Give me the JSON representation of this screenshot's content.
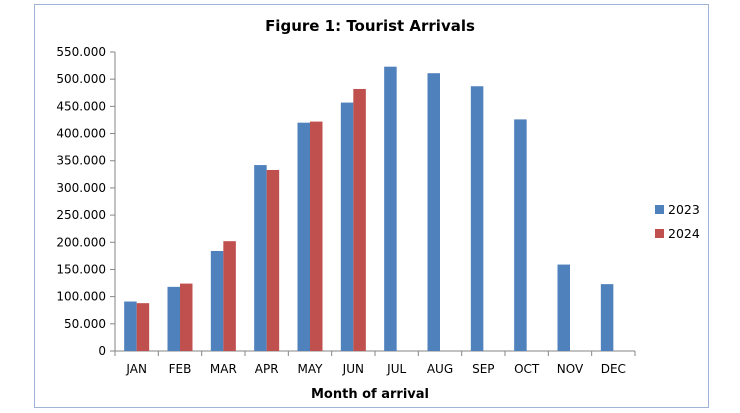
{
  "chart_data": {
    "type": "bar",
    "title": "Figure 1: Tourist Arrivals",
    "xlabel": "Month of arrival",
    "ylabel": "",
    "ylim": [
      0,
      550000
    ],
    "y_ticks": [
      0,
      50000,
      100000,
      150000,
      200000,
      250000,
      300000,
      350000,
      400000,
      450000,
      500000,
      550000
    ],
    "y_tick_labels": [
      "0",
      "50.000",
      "100.000",
      "150.000",
      "200.000",
      "250.000",
      "300.000",
      "350.000",
      "400.000",
      "450.000",
      "500.000",
      "550.000"
    ],
    "categories": [
      "JAN",
      "FEB",
      "MAR",
      "APR",
      "MAY",
      "JUN",
      "JUL",
      "AUG",
      "SEP",
      "OCT",
      "NOV",
      "DEC"
    ],
    "series": [
      {
        "name": "2023",
        "color": "#4f81bd",
        "values": [
          91000,
          118000,
          184000,
          342000,
          420000,
          457000,
          523000,
          511000,
          487000,
          426000,
          159000,
          123000
        ]
      },
      {
        "name": "2024",
        "color": "#c0504d",
        "values": [
          88000,
          124000,
          202000,
          333000,
          422000,
          482000,
          null,
          null,
          null,
          null,
          null,
          null
        ]
      }
    ],
    "grid": false,
    "legend_position": "right"
  }
}
